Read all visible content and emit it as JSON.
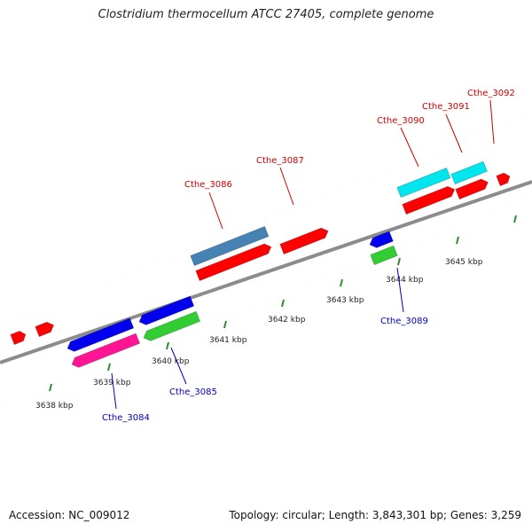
{
  "title": "Clostridium thermocellum ATCC 27405, complete genome",
  "footer": {
    "accession": "Accession: NC_009012",
    "summary": "Topology: circular; Length: 3,843,301 bp; Genes: 3,259"
  },
  "colors": {
    "backbone": "#8c8c8c",
    "tick": "#2e8b2e",
    "label_forward": "#cc0000",
    "label_reverse": "#0000bb",
    "ruler_text": "#222222"
  },
  "ruler_labels": [
    "3638 kbp",
    "3639 kbp",
    "3640 kbp",
    "3641 kbp",
    "3642 kbp",
    "3643 kbp",
    "3644 kbp",
    "3645 kbp"
  ],
  "gene_labels": [
    {
      "text": "Cthe_3084",
      "strand": "reverse"
    },
    {
      "text": "Cthe_3085",
      "strand": "reverse"
    },
    {
      "text": "Cthe_3086",
      "strand": "forward"
    },
    {
      "text": "Cthe_3087",
      "strand": "forward"
    },
    {
      "text": "Cthe_3089",
      "strand": "reverse"
    },
    {
      "text": "Cthe_3090",
      "strand": "forward"
    },
    {
      "text": "Cthe_3091",
      "strand": "forward"
    },
    {
      "text": "Cthe_3092",
      "strand": "forward"
    }
  ],
  "features": [
    {
      "id": "f1",
      "color": "#ff0000"
    },
    {
      "id": "f2",
      "color": "#ff0000"
    },
    {
      "id": "f3",
      "color": "#4682b4"
    },
    {
      "id": "f4",
      "color": "#ff0000"
    },
    {
      "id": "f5",
      "color": "#ff0000"
    },
    {
      "id": "f6",
      "color": "#00e5ee"
    },
    {
      "id": "f7",
      "color": "#ff0000"
    },
    {
      "id": "f8",
      "color": "#00e5ee"
    },
    {
      "id": "f9",
      "color": "#ff0000"
    },
    {
      "id": "f10",
      "color": "#ff0000"
    },
    {
      "id": "f11",
      "color": "#0000ee"
    },
    {
      "id": "f12",
      "color": "#ff1493"
    },
    {
      "id": "f13",
      "color": "#0000ee"
    },
    {
      "id": "f14",
      "color": "#32cd32"
    },
    {
      "id": "f15",
      "color": "#0000ee"
    },
    {
      "id": "f16",
      "color": "#32cd32"
    }
  ]
}
